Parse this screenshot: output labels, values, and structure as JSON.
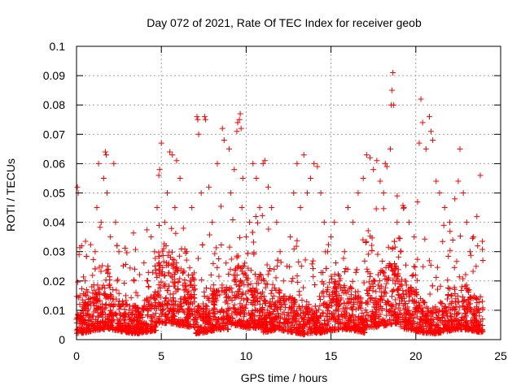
{
  "chart_data": {
    "type": "scatter",
    "title": "Day 072 of 2021, Rate Of TEC Index for receiver geob",
    "xlabel": "GPS time / hours",
    "ylabel": "ROTI / TECUs",
    "xlim": [
      0,
      25
    ],
    "ylim": [
      0,
      0.1
    ],
    "xticks": [
      "0",
      "5",
      "10",
      "15",
      "20",
      "25"
    ],
    "yticks": [
      "0",
      "0.01",
      "0.02",
      "0.03",
      "0.04",
      "0.05",
      "0.06",
      "0.07",
      "0.08",
      "0.09",
      "0.1"
    ],
    "grid": true,
    "marker": "plus",
    "color": "#ff0000",
    "series": [
      {
        "x": [
          0.05,
          0.1,
          0.15,
          0.2,
          0.3,
          0.5,
          0.7,
          0.9,
          1.1,
          1.2,
          1.3,
          1.45,
          1.6,
          1.7,
          1.75,
          1.8,
          1.85,
          2.0,
          2.2,
          2.3,
          2.4,
          2.5,
          2.7,
          2.9,
          3.1,
          3.4,
          3.6,
          3.9,
          4.2,
          4.4,
          4.6,
          4.75,
          4.85,
          4.9,
          5.0,
          5.2,
          5.35,
          5.5,
          5.65,
          5.8,
          5.9,
          6.1,
          6.3,
          6.5,
          6.8,
          7.1,
          7.15,
          7.2,
          7.35,
          7.55,
          7.6,
          7.8,
          8.0,
          8.3,
          8.6,
          8.7,
          9.0,
          9.1,
          9.3,
          9.45,
          9.5,
          9.6,
          9.65,
          9.7,
          9.75,
          9.8,
          10.0,
          10.2,
          10.4,
          10.6,
          10.8,
          11.0,
          11.1,
          11.3,
          11.5,
          11.8,
          12.0,
          12.2,
          12.4,
          12.6,
          12.8,
          13.0,
          13.2,
          13.4,
          13.6,
          13.8,
          14.0,
          14.2,
          14.4,
          14.6,
          14.8,
          15.0,
          15.2,
          15.5,
          15.8,
          16.0,
          16.3,
          16.6,
          16.9,
          17.1,
          17.3,
          17.5,
          17.7,
          17.9,
          18.1,
          18.2,
          18.3,
          18.5,
          18.55,
          18.6,
          18.65,
          18.7,
          18.9,
          19.1,
          19.3,
          19.6,
          19.9,
          20.1,
          20.2,
          20.3,
          20.4,
          20.6,
          20.8,
          20.9,
          21.0,
          21.2,
          21.4,
          21.7,
          22.0,
          22.3,
          22.5,
          22.6,
          22.8,
          23.0,
          23.2,
          23.4,
          23.6,
          23.8,
          23.95
        ],
        "y": [
          0.052,
          0.05,
          0.029,
          0.015,
          0.032,
          0.02,
          0.012,
          0.018,
          0.03,
          0.045,
          0.06,
          0.04,
          0.055,
          0.064,
          0.063,
          0.05,
          0.025,
          0.035,
          0.06,
          0.04,
          0.02,
          0.03,
          0.012,
          0.015,
          0.01,
          0.02,
          0.015,
          0.01,
          0.02,
          0.035,
          0.03,
          0.045,
          0.056,
          0.058,
          0.067,
          0.04,
          0.05,
          0.064,
          0.063,
          0.045,
          0.061,
          0.055,
          0.038,
          0.03,
          0.045,
          0.076,
          0.075,
          0.07,
          0.05,
          0.076,
          0.075,
          0.052,
          0.04,
          0.06,
          0.072,
          0.068,
          0.065,
          0.05,
          0.058,
          0.071,
          0.074,
          0.075,
          0.077,
          0.072,
          0.045,
          0.055,
          0.035,
          0.04,
          0.06,
          0.055,
          0.045,
          0.06,
          0.061,
          0.052,
          0.045,
          0.04,
          0.03,
          0.02,
          0.025,
          0.035,
          0.05,
          0.06,
          0.045,
          0.063,
          0.05,
          0.055,
          0.06,
          0.059,
          0.05,
          0.04,
          0.03,
          0.035,
          0.04,
          0.02,
          0.03,
          0.045,
          0.04,
          0.05,
          0.055,
          0.063,
          0.062,
          0.058,
          0.061,
          0.054,
          0.05,
          0.06,
          0.059,
          0.065,
          0.08,
          0.085,
          0.091,
          0.08,
          0.04,
          0.03,
          0.045,
          0.04,
          0.035,
          0.047,
          0.067,
          0.082,
          0.074,
          0.065,
          0.076,
          0.071,
          0.068,
          0.054,
          0.05,
          0.045,
          0.04,
          0.048,
          0.054,
          0.065,
          0.05,
          0.04,
          0.03,
          0.035,
          0.042,
          0.056,
          0.027
        ]
      }
    ]
  }
}
